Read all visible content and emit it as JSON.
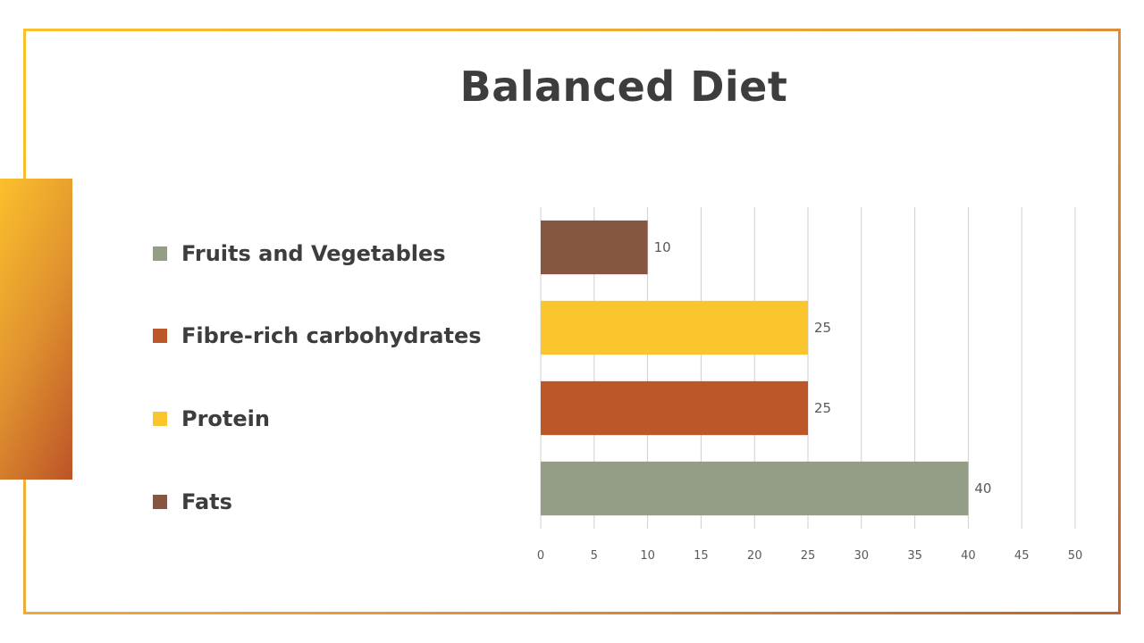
{
  "title": "Balanced Diet",
  "legend": [
    {
      "label": "Fruits and Vegetables",
      "color": "#949e86"
    },
    {
      "label": "Fibre-rich carbohydrates",
      "color": "#bc5729"
    },
    {
      "label": "Protein",
      "color": "#fbc52d"
    },
    {
      "label": "Fats",
      "color": "#855640"
    }
  ],
  "colors": {
    "frame_start": "#fbc02d",
    "frame_end": "#c0642f",
    "title_text": "#3d3d3d",
    "gridline": "#d0d0d0"
  },
  "chart_data": {
    "type": "bar",
    "orientation": "horizontal",
    "categories": [
      "Fats",
      "Protein",
      "Fibre-rich carbohydrates",
      "Fruits and Vegetables"
    ],
    "values": [
      10,
      25,
      25,
      40
    ],
    "bar_colors": [
      "#855640",
      "#fbc52d",
      "#bc5729",
      "#949e86"
    ],
    "title": "",
    "xlabel": "",
    "ylabel": "",
    "xlim": [
      0,
      50
    ],
    "x_ticks": [
      0,
      5,
      10,
      15,
      20,
      25,
      30,
      35,
      40,
      45,
      50
    ],
    "grid": "vertical",
    "data_labels": true,
    "legend_position": "left"
  }
}
